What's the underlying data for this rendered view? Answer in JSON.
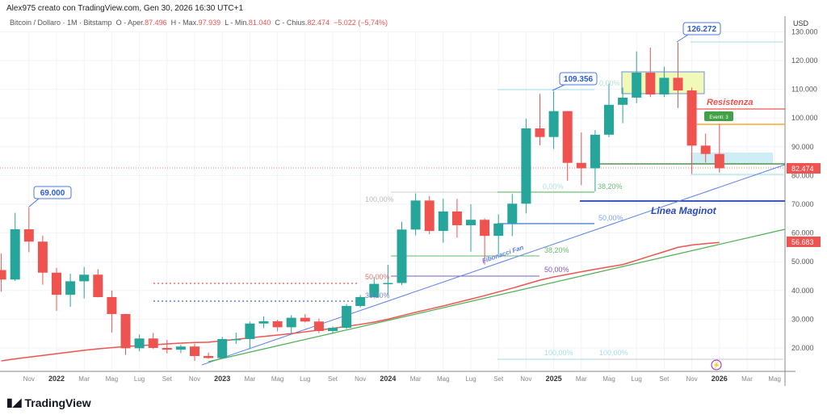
{
  "header": {
    "credit": "Alex975 creato con TradingView.com, Gen 30, 2026 16:30 UTC+1",
    "symbol": "Bitcoin / Dollaro · 1M · Bitstamp",
    "o_label": "O - Aper.",
    "o": "87.496",
    "h_label": "H - Max.",
    "h": "97.939",
    "l_label": "L - Min.",
    "l": "81.040",
    "c_label": "C - Chius.",
    "c": "82.474",
    "change": "−5.022 (−5,74%)"
  },
  "brand": "TradingView",
  "colors": {
    "up": "#26a69a",
    "down": "#ef5350",
    "ma": "#ef5350",
    "trend": "#4caf50",
    "fan": "#5b7ff0",
    "maginot": "#2540b0"
  },
  "chart_data": {
    "type": "candlestick",
    "currency": "USD",
    "ylim": [
      13000,
      134000
    ],
    "grid": true,
    "yticks": [
      "20.000",
      "30.000",
      "40.000",
      "50.000",
      "60.000",
      "70.000",
      "80.000",
      "90.000",
      "100.000",
      "110.000",
      "120.000",
      "130.000"
    ],
    "xticks": [
      "Nov",
      "2022",
      "Mar",
      "Mag",
      "Lug",
      "Set",
      "Nov",
      "2023",
      "Mar",
      "Mag",
      "Lug",
      "Set",
      "Nov",
      "2024",
      "Mar",
      "Mag",
      "Lug",
      "Set",
      "Nov",
      "2025",
      "Mar",
      "Mag",
      "Lug",
      "Set",
      "Nov",
      "2026",
      "Mar",
      "Mag"
    ],
    "first_month": "2021-09",
    "ohlc": [
      [
        47.1,
        52.9,
        39.6,
        43.8
      ],
      [
        43.8,
        67.0,
        43.3,
        61.3
      ],
      [
        61.3,
        69.0,
        53.3,
        57.0
      ],
      [
        57.0,
        59.1,
        42.0,
        46.2
      ],
      [
        46.2,
        47.9,
        32.9,
        38.5
      ],
      [
        38.5,
        45.8,
        34.3,
        43.2
      ],
      [
        43.2,
        48.2,
        37.2,
        45.5
      ],
      [
        45.5,
        47.4,
        37.6,
        37.7
      ],
      [
        37.7,
        40.0,
        25.4,
        31.8
      ],
      [
        31.8,
        31.9,
        17.6,
        19.9
      ],
      [
        19.9,
        24.7,
        18.8,
        23.3
      ],
      [
        23.3,
        25.2,
        19.6,
        20.0
      ],
      [
        20.0,
        22.8,
        18.1,
        19.4
      ],
      [
        19.4,
        21.1,
        18.2,
        20.5
      ],
      [
        20.5,
        21.5,
        15.5,
        17.2
      ],
      [
        17.2,
        18.4,
        16.3,
        16.5
      ],
      [
        16.5,
        23.9,
        16.5,
        23.1
      ],
      [
        23.1,
        25.3,
        21.4,
        23.1
      ],
      [
        23.1,
        29.2,
        19.6,
        28.5
      ],
      [
        28.5,
        31.0,
        26.9,
        29.3
      ],
      [
        29.3,
        29.8,
        25.8,
        27.2
      ],
      [
        27.2,
        31.4,
        24.8,
        30.5
      ],
      [
        30.5,
        31.8,
        28.9,
        29.2
      ],
      [
        29.2,
        30.2,
        25.2,
        25.9
      ],
      [
        25.9,
        27.5,
        24.9,
        27.0
      ],
      [
        27.0,
        35.2,
        26.6,
        34.6
      ],
      [
        34.6,
        38.4,
        34.1,
        37.7
      ],
      [
        37.7,
        44.7,
        37.6,
        42.3
      ],
      [
        42.3,
        48.9,
        38.5,
        42.6
      ],
      [
        42.6,
        63.9,
        41.9,
        61.2
      ],
      [
        61.2,
        73.8,
        59.2,
        71.3
      ],
      [
        71.3,
        72.8,
        59.6,
        60.7
      ],
      [
        60.7,
        71.9,
        56.6,
        67.5
      ],
      [
        67.5,
        71.9,
        58.4,
        62.7
      ],
      [
        62.7,
        70.0,
        53.5,
        64.6
      ],
      [
        64.6,
        65.1,
        49.0,
        59.0
      ],
      [
        59.0,
        66.5,
        52.6,
        63.3
      ],
      [
        63.3,
        73.6,
        58.9,
        70.2
      ],
      [
        70.2,
        99.8,
        66.8,
        96.4
      ],
      [
        96.4,
        108.4,
        90.5,
        93.4
      ],
      [
        93.4,
        109.4,
        89.2,
        102.4
      ],
      [
        102.4,
        102.5,
        78.2,
        84.4
      ],
      [
        84.4,
        95.0,
        76.6,
        82.5
      ],
      [
        82.5,
        95.8,
        74.4,
        94.2
      ],
      [
        94.2,
        112.0,
        93.3,
        104.6
      ],
      [
        104.6,
        110.6,
        98.2,
        107.1
      ],
      [
        107.1,
        123.2,
        105.2,
        115.8
      ],
      [
        115.8,
        124.5,
        107.3,
        108.2
      ],
      [
        108.2,
        117.9,
        107.3,
        114.0
      ],
      [
        114.0,
        126.3,
        103.5,
        109.6
      ],
      [
        109.6,
        110.6,
        80.6,
        90.4
      ],
      [
        90.4,
        94.6,
        84.5,
        87.5
      ],
      [
        87.5,
        97.9,
        81.0,
        82.5
      ]
    ],
    "ma": [
      15.5,
      16.2,
      16.8,
      17.4,
      18.0,
      18.6,
      19.2,
      19.7,
      20.1,
      20.5,
      20.8,
      21.1,
      21.4,
      21.7,
      21.9,
      22.0,
      22.5,
      23.0,
      23.5,
      24.0,
      24.5,
      25.0,
      25.6,
      26.2,
      26.8,
      27.5,
      28.2,
      29.0,
      30.0,
      31.2,
      32.4,
      33.5,
      34.6,
      35.8,
      37.0,
      38.2,
      39.5,
      40.8,
      42.2,
      43.6,
      44.7,
      45.6,
      46.5,
      47.4,
      48.2,
      49.0,
      50.5,
      52.0,
      53.5,
      55.0,
      55.8,
      56.3,
      56.7
    ],
    "last_price": "82.474",
    "ma_last": "56.683",
    "annotations": {
      "callouts": [
        "69.000",
        "109.356",
        "126.272"
      ],
      "resistance": "Resistenza",
      "maginot": "Linea Maginot",
      "fan": "Fibonacci Fan",
      "events": "Eventi: 3",
      "fib": [
        "100,00%",
        "50,00%",
        "38,20%",
        "0,00%",
        "38,20%",
        "50,00%",
        "38,20%",
        "50,00%",
        "100,00%",
        "100,00%",
        "0,00%"
      ]
    }
  }
}
